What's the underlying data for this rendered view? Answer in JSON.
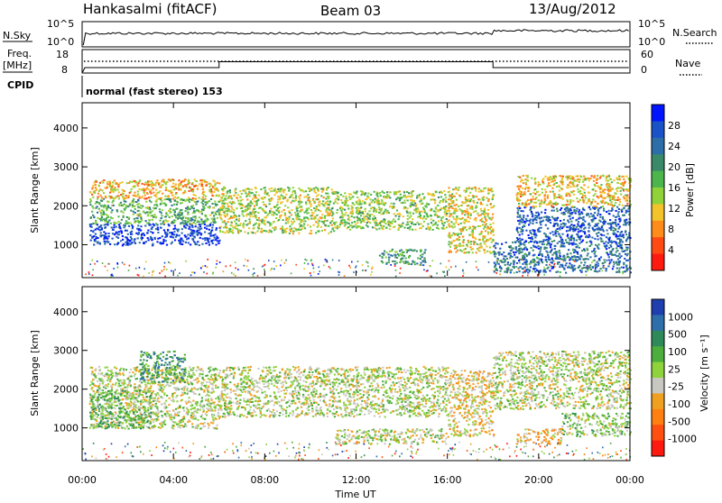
{
  "header": {
    "station": "Hankasalmi (fitACF)",
    "beam": "Beam 03",
    "date": "13/Aug/2012"
  },
  "status_panels": {
    "nsky_label": "N.Sky",
    "nsearch_label": "N.Search",
    "noise_ticks": [
      "10^5",
      "10^0"
    ],
    "freq_label_1": "Freq.",
    "freq_label_2": "[MHz]",
    "freq_ticks": [
      "18",
      "8"
    ],
    "nave_label": "Nave",
    "nave_ticks": [
      "60",
      "0"
    ],
    "cpid_label": "CPID",
    "cpid_value": "normal (fast stereo) 153"
  },
  "time_axis": {
    "xlabel": "Time UT",
    "ticks": [
      "00:00",
      "04:00",
      "08:00",
      "12:00",
      "16:00",
      "20:00",
      "00:00"
    ],
    "range_hours": [
      0,
      24
    ]
  },
  "range_axis": {
    "ylabel": "Slant Range [km]",
    "ticks": [
      "1000",
      "2000",
      "3000",
      "4000"
    ],
    "range_km": [
      200,
      4600
    ]
  },
  "chart_data": [
    {
      "type": "heatmap",
      "title": "Power",
      "colorbar_label": "Power [dB]",
      "colorbar_ticks": [
        "4",
        "8",
        "12",
        "16",
        "20",
        "24",
        "28"
      ],
      "colorbar_range": [
        0,
        32
      ],
      "colors": [
        "#0014ff",
        "#1a52c8",
        "#2d6ea8",
        "#3a8a6a",
        "#4cb64c",
        "#8fd23a",
        "#f2c32a",
        "#ff8c1a",
        "#ff4a14",
        "#ff1a10"
      ],
      "scatter_bands": [
        {
          "t0": 0.3,
          "t1": 6.0,
          "r0": 1000,
          "r1": 1550,
          "value": 28
        },
        {
          "t0": 0.3,
          "t1": 6.0,
          "r0": 1550,
          "r1": 2200,
          "value": 18
        },
        {
          "t0": 0.3,
          "t1": 6.0,
          "r0": 2200,
          "r1": 2700,
          "value": 10
        },
        {
          "t0": 6.0,
          "t1": 11.0,
          "r0": 1300,
          "r1": 2500,
          "value": 14
        },
        {
          "t0": 11.0,
          "t1": 16.0,
          "r0": 1400,
          "r1": 2400,
          "value": 15
        },
        {
          "t0": 13.0,
          "t1": 15.0,
          "r0": 500,
          "r1": 900,
          "value": 20
        },
        {
          "t0": 16.0,
          "t1": 18.0,
          "r0": 800,
          "r1": 2500,
          "value": 12
        },
        {
          "t0": 18.0,
          "t1": 24.0,
          "r0": 300,
          "r1": 1100,
          "value": 24
        },
        {
          "t0": 19.0,
          "t1": 24.0,
          "r0": 1100,
          "r1": 2000,
          "value": 26
        },
        {
          "t0": 19.0,
          "t1": 24.0,
          "r0": 2000,
          "r1": 2800,
          "value": 11
        }
      ]
    },
    {
      "type": "heatmap",
      "title": "Velocity",
      "colorbar_label": "Velocity [m s⁻¹]",
      "colorbar_ticks": [
        "1000",
        "500",
        "100",
        "25",
        "-25",
        "-100",
        "-500",
        "-1000"
      ],
      "colorbar_range": [
        -1200,
        1200
      ],
      "colors": [
        "#1f3fae",
        "#2e6eaa",
        "#2f8a5a",
        "#4cae3c",
        "#8ed23c",
        "#c8c8c0",
        "#f0a020",
        "#ff8010",
        "#ff5010",
        "#ff1a10"
      ],
      "scatter_bands": [
        {
          "t0": 0.3,
          "t1": 6.0,
          "r0": 1000,
          "r1": 2600,
          "value": 0
        },
        {
          "t0": 2.5,
          "t1": 4.5,
          "r0": 2200,
          "r1": 3000,
          "value": 500
        },
        {
          "t0": 0.3,
          "t1": 3.0,
          "r0": 1000,
          "r1": 2000,
          "value": 300
        },
        {
          "t0": 6.0,
          "t1": 16.0,
          "r0": 1300,
          "r1": 2600,
          "value": 0
        },
        {
          "t0": 11.0,
          "t1": 16.0,
          "r0": 600,
          "r1": 1000,
          "value": 0
        },
        {
          "t0": 16.0,
          "t1": 18.0,
          "r0": 800,
          "r1": 2500,
          "value": -200
        },
        {
          "t0": 18.0,
          "t1": 24.0,
          "r0": 1500,
          "r1": 3000,
          "value": 0
        },
        {
          "t0": 19.0,
          "t1": 21.0,
          "r0": 600,
          "r1": 1000,
          "value": -300
        },
        {
          "t0": 21.0,
          "t1": 24.0,
          "r0": 800,
          "r1": 1400,
          "value": 150
        }
      ]
    }
  ]
}
